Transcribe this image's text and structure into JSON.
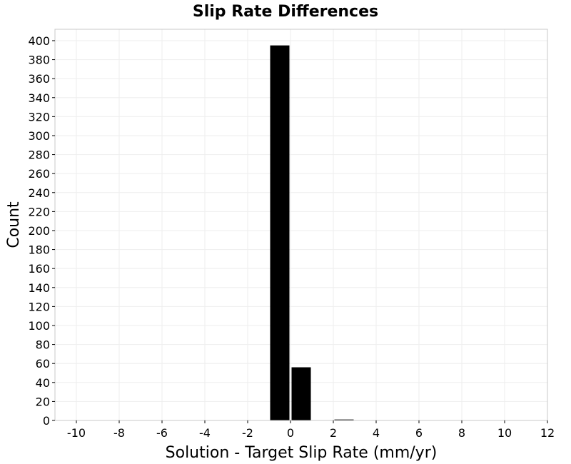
{
  "chart_data": {
    "type": "bar",
    "title": "Slip Rate Differences",
    "xlabel": "Solution - Target Slip Rate (mm/yr)",
    "ylabel": "Count",
    "bin_width": 1,
    "bins": [
      {
        "x": -0.5,
        "value": 395
      },
      {
        "x": 0.5,
        "value": 56
      },
      {
        "x": 2.5,
        "value": 1
      }
    ],
    "xlim": [
      -11,
      12
    ],
    "ylim": [
      0,
      412
    ],
    "xticks": [
      -10,
      -8,
      -6,
      -4,
      -2,
      0,
      2,
      4,
      6,
      8,
      10,
      12
    ],
    "yticks": [
      0,
      20,
      40,
      60,
      80,
      100,
      120,
      140,
      160,
      180,
      200,
      220,
      240,
      260,
      280,
      300,
      320,
      340,
      360,
      380,
      400
    ],
    "grid": true,
    "bar_color": "#000000",
    "grid_color": "#eeeeee"
  }
}
